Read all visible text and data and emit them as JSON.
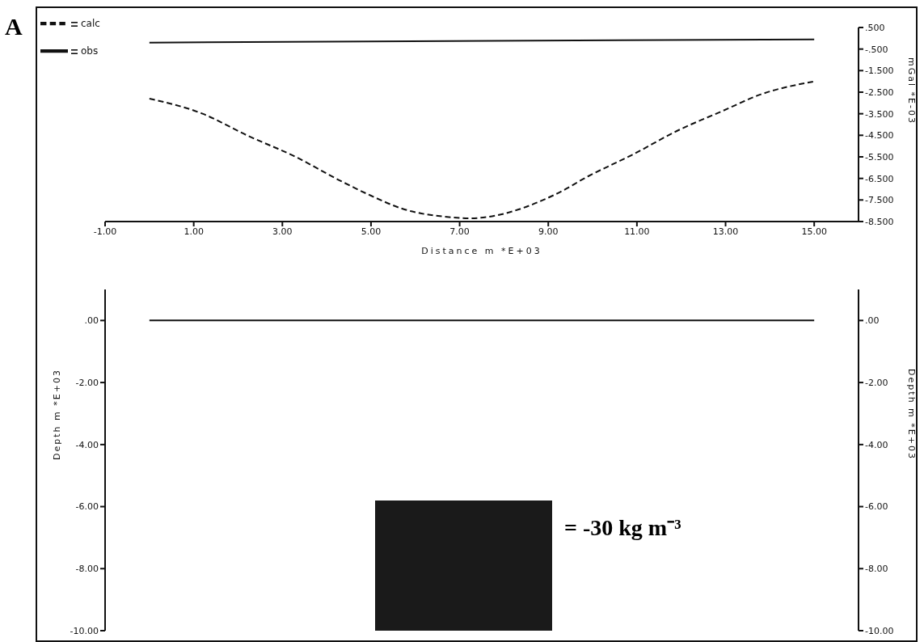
{
  "chart_data": [
    {
      "type": "line",
      "annotations": [
        "A"
      ],
      "xlabel": "Distance m *E+03",
      "ylabel": "mGal *E-03",
      "legend": "top left",
      "series": [
        {
          "name": "calc",
          "color": "#111111",
          "line_style": "dashed",
          "x": [
            0,
            1.2,
            2.2,
            3.3,
            4.3,
            5.0,
            5.7,
            6.8,
            7.2,
            9.2,
            9.9,
            10.9,
            11.9,
            12.9,
            13.8,
            15
          ],
          "values": [
            -2.8,
            -3.5,
            -4.5,
            -5.5,
            -6.6,
            -7.3,
            -7.9,
            -8.3,
            -8.35,
            -7.2,
            -6.4,
            -5.4,
            -4.3,
            -3.4,
            -2.6,
            -2.0
          ]
        },
        {
          "name": "obs",
          "color": "#111111",
          "line_style": "solid",
          "x": [
            0,
            15
          ],
          "values": [
            -0.2,
            -0.05
          ]
        }
      ],
      "xlim": [
        -1,
        16
      ],
      "xticks": [
        {
          "value": -1,
          "label": "-1.00"
        },
        {
          "value": 1,
          "label": "1.00"
        },
        {
          "value": 3,
          "label": "3.00"
        },
        {
          "value": 5,
          "label": "5.00"
        },
        {
          "value": 7,
          "label": "7.00"
        },
        {
          "value": 9,
          "label": "9.00"
        },
        {
          "value": 11,
          "label": "11.00"
        },
        {
          "value": 13,
          "label": "13.00"
        },
        {
          "value": 15,
          "label": "15.00"
        }
      ],
      "ylim": [
        -8.5,
        0.5
      ],
      "yticks": [
        {
          "value": 0.5,
          "label": ".500"
        },
        {
          "value": -0.5,
          "label": "-.500"
        },
        {
          "value": -1.5,
          "label": "-1.500"
        },
        {
          "value": -2.5,
          "label": "-2.500"
        },
        {
          "value": -3.5,
          "label": "-3.500"
        },
        {
          "value": -4.5,
          "label": "-4.500"
        },
        {
          "value": -5.5,
          "label": "-5.500"
        },
        {
          "value": -6.5,
          "label": "-6.500"
        },
        {
          "value": -7.5,
          "label": "-7.500"
        },
        {
          "value": -8.5,
          "label": "-8.500"
        }
      ]
    },
    {
      "type": "line",
      "ylabel": "Depth m *E+03",
      "y2label": "Depth m *E+03",
      "tick_labels": "y",
      "annotations": [
        "= -30 kg m⁻³"
      ],
      "series": [
        {
          "color": "#111111",
          "line_style": "solid",
          "x": [
            0,
            15
          ],
          "values": [
            0,
            0
          ]
        }
      ],
      "xlim": [
        -1,
        16
      ],
      "ylim": [
        -10,
        1
      ],
      "yticks": [
        {
          "value": 0,
          "label": ".00"
        },
        {
          "value": -2,
          "label": "-2.00"
        },
        {
          "value": -4,
          "label": "-4.00"
        },
        {
          "value": -6,
          "label": "-6.00"
        },
        {
          "value": -8,
          "label": "-8.00"
        },
        {
          "value": -10,
          "label": "-10.00"
        }
      ],
      "y2lim": [
        -10,
        1
      ],
      "y2ticks": [
        {
          "value": 0,
          "label": ".00"
        },
        {
          "value": -2,
          "label": "-2.00"
        },
        {
          "value": -4,
          "label": "-4.00"
        },
        {
          "value": -6,
          "label": "-6.00"
        },
        {
          "value": -8,
          "label": "-8.00"
        },
        {
          "value": -10,
          "label": "-10.00"
        }
      ]
    }
  ]
}
